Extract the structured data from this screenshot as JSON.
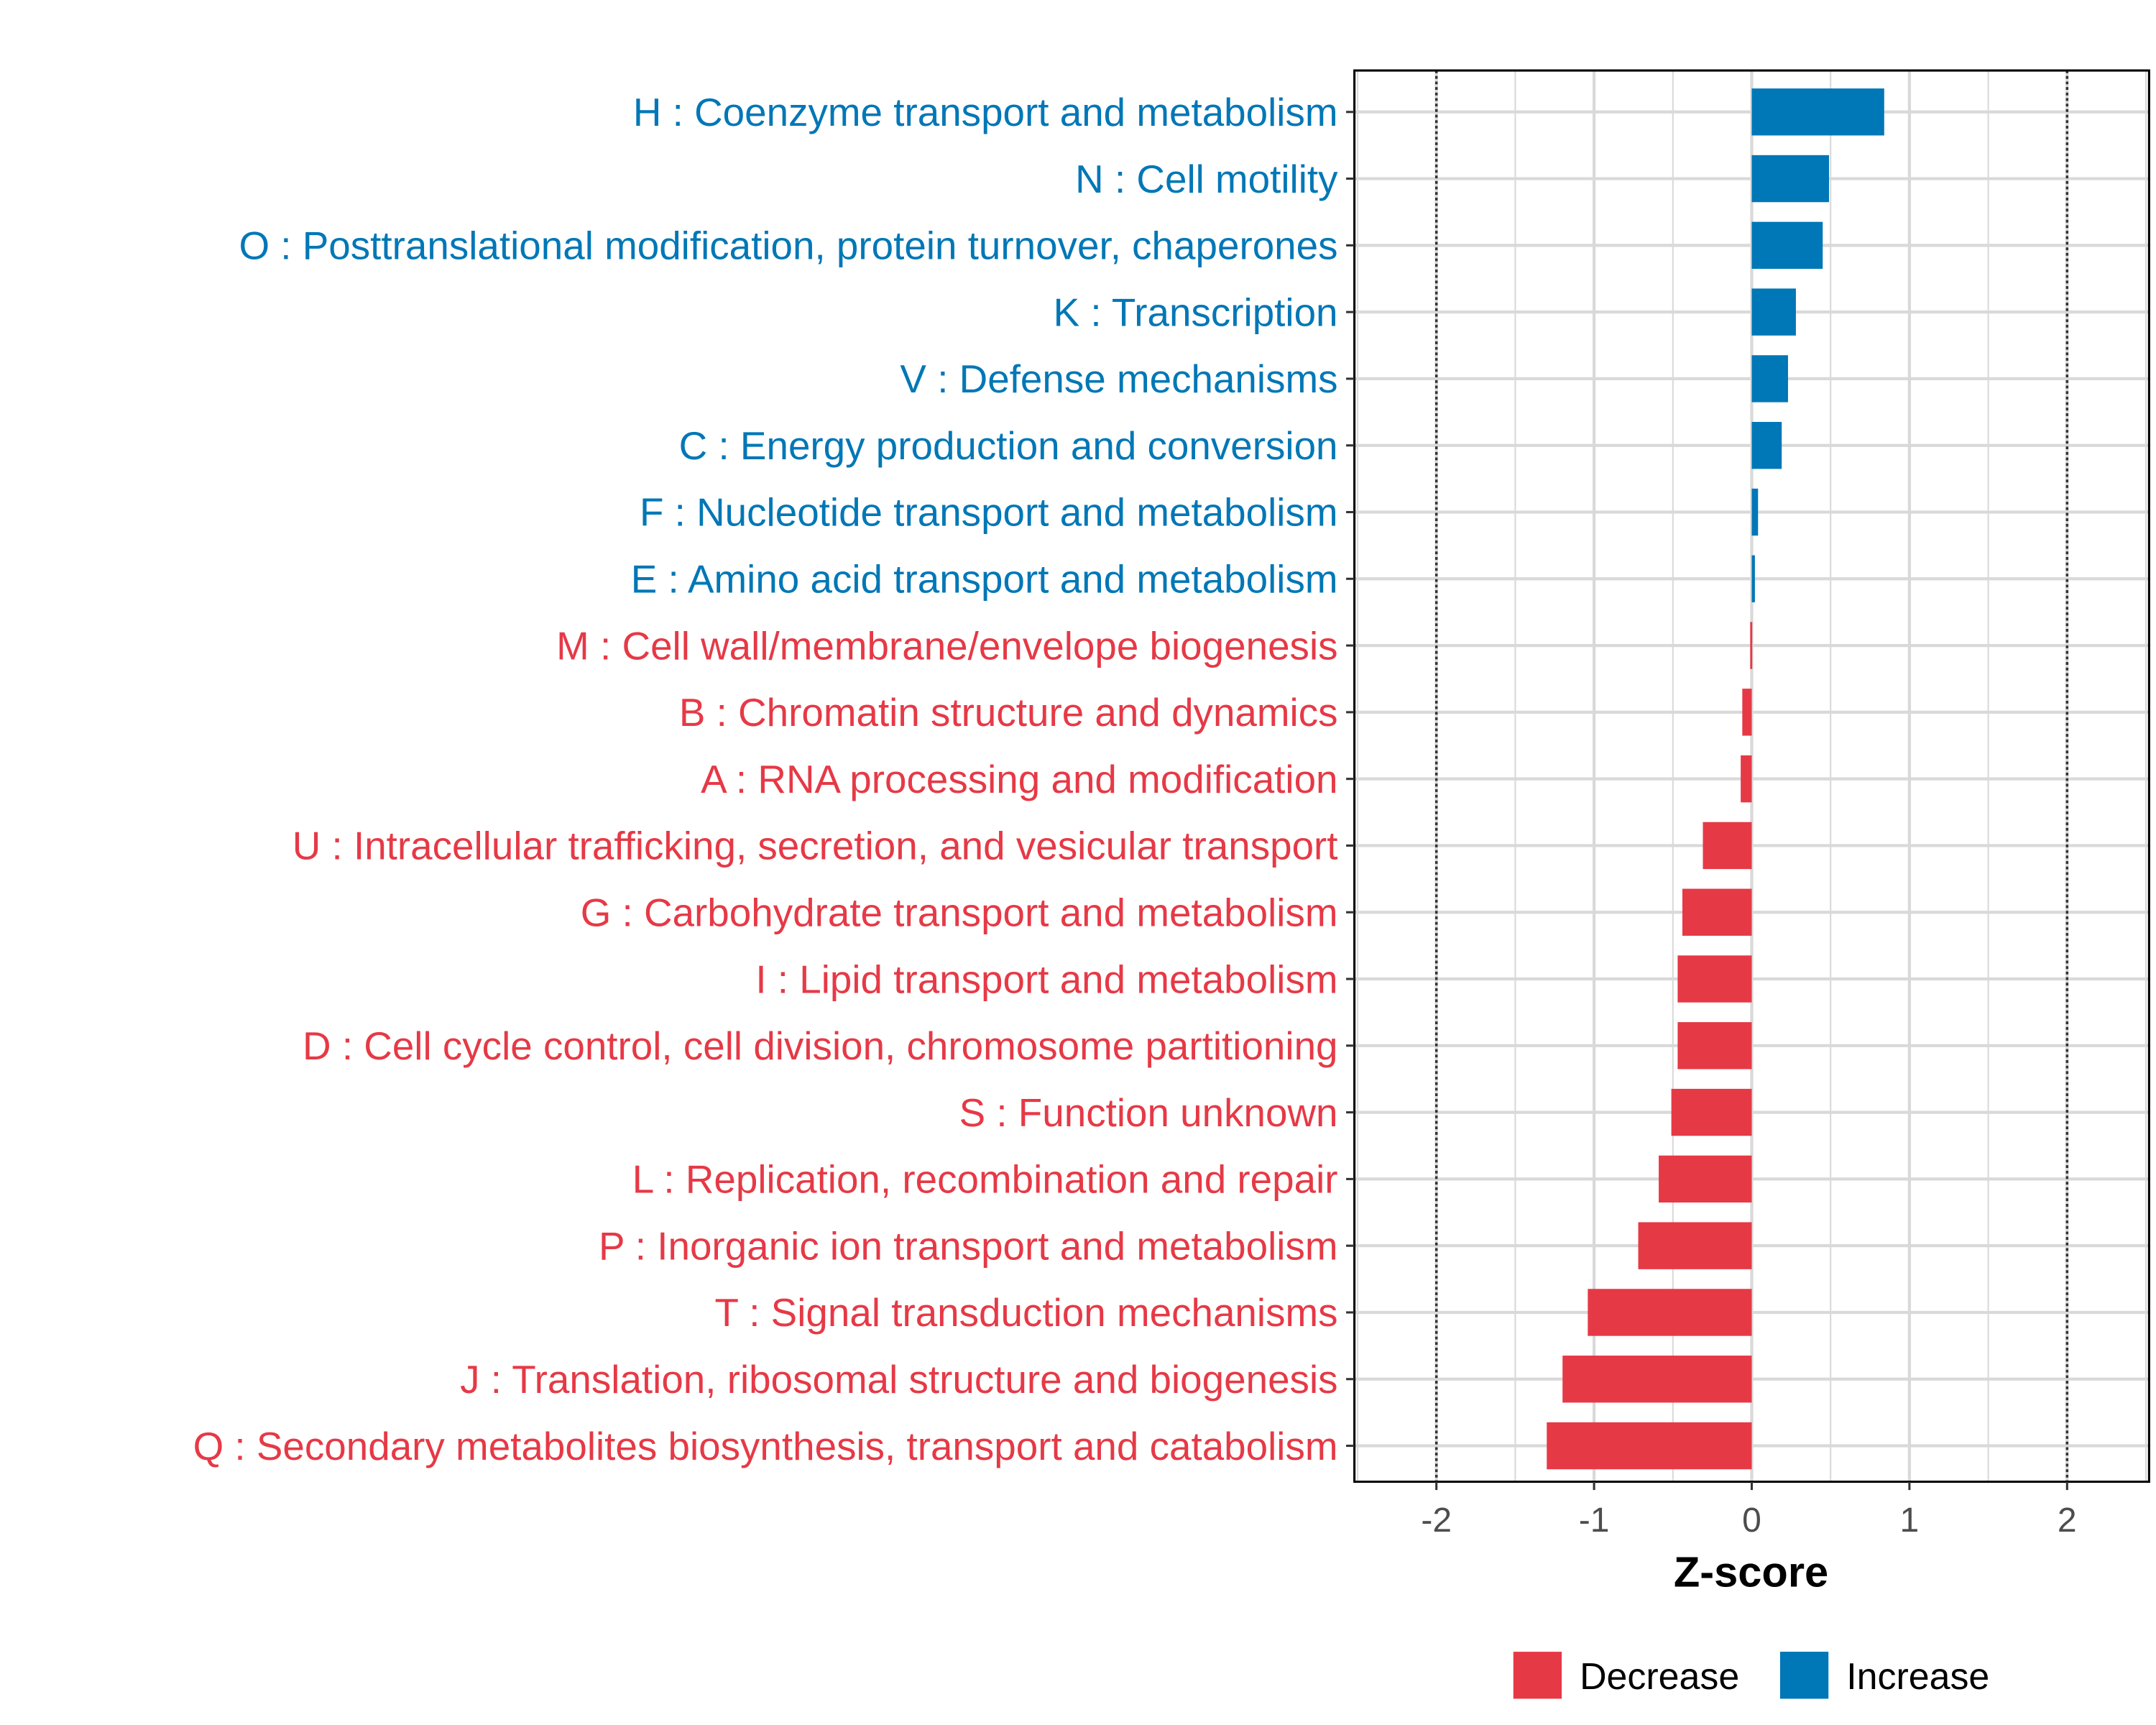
{
  "chart_data": {
    "type": "bar",
    "orientation": "horizontal",
    "title": "",
    "xlabel": "Z-score",
    "ylabel": "",
    "xlim": [
      -2.52,
      2.52
    ],
    "xticks": [
      -2,
      -1,
      0,
      1,
      2
    ],
    "xtick_labels": [
      "-2",
      "-1",
      "0",
      "1",
      "2"
    ],
    "reference_lines": [
      -2,
      2
    ],
    "grid": true,
    "legend_position": "bottom",
    "colors": {
      "Decrease": "#E63946",
      "Increase": "#0077B6"
    },
    "legend": [
      {
        "label": "Decrease",
        "color": "#E63946"
      },
      {
        "label": "Increase",
        "color": "#0077B6"
      }
    ],
    "categories": [
      "H : Coenzyme transport and metabolism",
      "N : Cell motility",
      "O : Posttranslational modification, protein turnover, chaperones",
      "K : Transcription",
      "V : Defense mechanisms",
      "C : Energy production and conversion",
      "F : Nucleotide transport and metabolism",
      "E : Amino acid transport and metabolism",
      "M : Cell wall/membrane/envelope biogenesis",
      "B : Chromatin structure and dynamics",
      "A : RNA processing and modification",
      "U : Intracellular trafficking, secretion, and vesicular transport",
      "G : Carbohydrate transport and metabolism",
      "I : Lipid transport and metabolism",
      "D : Cell cycle control, cell division, chromosome partitioning",
      "S : Function unknown",
      "L : Replication, recombination and repair",
      "P : Inorganic ion transport and metabolism",
      "T : Signal transduction mechanisms",
      "J : Translation, ribosomal structure and biogenesis",
      "Q : Secondary metabolites biosynthesis, transport and catabolism"
    ],
    "values": [
      0.84,
      0.49,
      0.45,
      0.28,
      0.23,
      0.19,
      0.04,
      0.02,
      -0.01,
      -0.06,
      -0.07,
      -0.31,
      -0.44,
      -0.47,
      -0.47,
      -0.51,
      -0.59,
      -0.72,
      -1.04,
      -1.2,
      -1.3
    ]
  }
}
